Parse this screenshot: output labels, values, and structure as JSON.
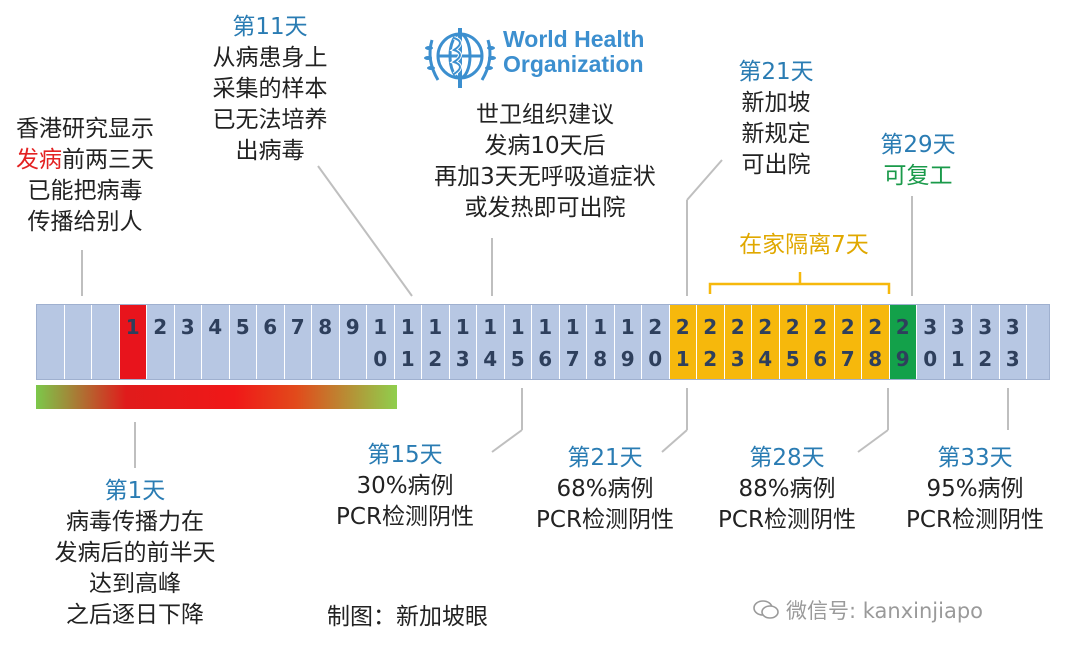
{
  "hk_study": {
    "line1": "香港研究显示",
    "line2_red": "发病",
    "line2_rest": "前两三天",
    "line3": "已能把病毒",
    "line4": "传播给别人"
  },
  "day11": {
    "title": "第11天",
    "lines": [
      "从病患身上",
      "采集的样本",
      "已无法培养",
      "出病毒"
    ]
  },
  "who": {
    "org_line1": "World Health",
    "org_line2": "Organization",
    "lines": [
      "世卫组织建议",
      "发病10天后",
      "再加3天无呼吸道症状",
      "或发热即可出院"
    ]
  },
  "day21_top": {
    "title": "第21天",
    "lines": [
      "新加坡",
      "新规定",
      "可出院"
    ]
  },
  "day29": {
    "title": "第29天",
    "line": "可复工"
  },
  "quarantine_label": "在家隔离7天",
  "timeline": {
    "digits_top": [
      "",
      "",
      "",
      "1",
      "2",
      "3",
      "4",
      "5",
      "6",
      "7",
      "8",
      "9",
      "1",
      "1",
      "1",
      "1",
      "1",
      "1",
      "1",
      "1",
      "1",
      "1",
      "2",
      "2",
      "2",
      "2",
      "2",
      "2",
      "2",
      "2",
      "2",
      "2",
      "3",
      "3",
      "3",
      "3",
      ""
    ],
    "digits_bottom": [
      "",
      "",
      "",
      "",
      "",
      "",
      "",
      "",
      "",
      "",
      "",
      "",
      "0",
      "1",
      "2",
      "3",
      "4",
      "5",
      "6",
      "7",
      "8",
      "9",
      "0",
      "1",
      "2",
      "3",
      "4",
      "5",
      "6",
      "7",
      "8",
      "9",
      "0",
      "1",
      "2",
      "3",
      ""
    ],
    "colors": {
      "base": "#b7c7e3",
      "day1": "#e8141c",
      "quarantine": "#f6b80c",
      "return_to_work": "#13a14a"
    }
  },
  "day1": {
    "title": "第1天",
    "lines": [
      "病毒传播力在",
      "发病后的前半天",
      "达到高峰",
      "之后逐日下降"
    ]
  },
  "day15": {
    "title": "第15天",
    "percent": "30%病例",
    "test": "PCR检测阴性"
  },
  "day21_bottom": {
    "title": "第21天",
    "percent": "68%病例",
    "test": "PCR检测阴性"
  },
  "day28": {
    "title": "第28天",
    "percent": "88%病例",
    "test": "PCR检测阴性"
  },
  "day33": {
    "title": "第33天",
    "percent": "95%病例",
    "test": "PCR检测阴性"
  },
  "credit": "制图：新加坡眼",
  "watermark": "微信号: kanxinjiapo"
}
